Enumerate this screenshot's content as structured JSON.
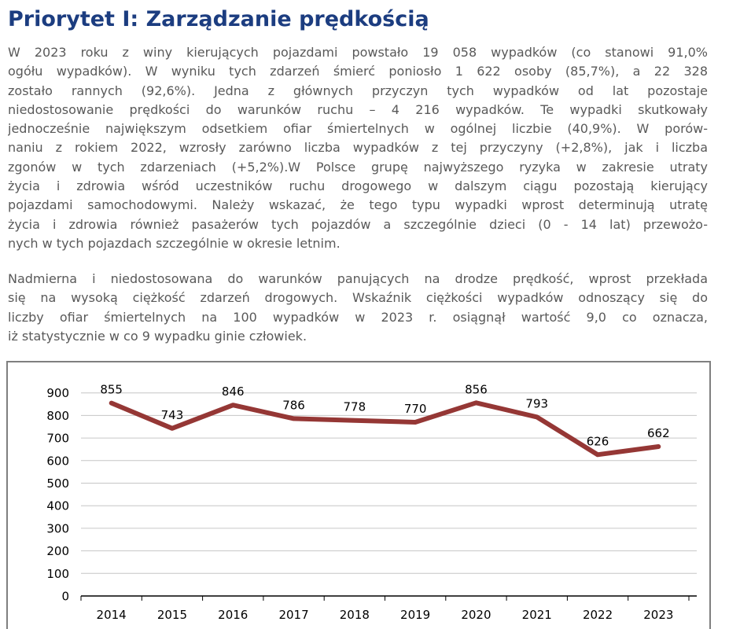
{
  "page": {
    "title": "Priorytet I: Zarządzanie prędkością"
  },
  "paragraphs": [
    {
      "lines": [
        "W 2023 roku z winy kierujących pojazdami powstało 19 058 wypadków (co stanowi 91,0%",
        "ogółu wypadków). W wyniku tych zdarzeń śmierć poniosło 1 622 osoby (85,7%), a 22 328",
        "zostało rannych (92,6%). Jedna z głównych przyczyn tych wypadków od lat pozostaje",
        "niedostosowanie prędkości do warunków ruchu – 4 216 wypadków. Te wypadki skutkowały",
        "jednocześnie największym odsetkiem ofiar śmiertelnych w ogólnej liczbie (40,9%). W porów-",
        "naniu z rokiem 2022, wzrosły zarówno liczba wypadków z tej przyczyny (+2,8%), jak i liczba",
        "zgonów w tych zdarzeniach (+5,2%).W Polsce grupę najwyższego ryzyka w zakresie utraty",
        "życia i zdrowia wśród uczestników ruchu drogowego w dalszym ciągu pozostają kierujący",
        "pojazdami samochodowymi. Należy wskazać, że tego typu wypadki wprost determinują utratę",
        "życia i zdrowia również pasażerów tych pojazdów a szczególnie dzieci (0 - 14 lat) przewożo-",
        "nych w tych pojazdach szczególnie w okresie letnim."
      ]
    },
    {
      "lines": [
        "Nadmierna i niedostosowana do warunków panujących na drodze prędkość, wprost przekłada",
        "się na wysoką ciężkość zdarzeń drogowych. Wskaźnik ciężkości wypadków odnoszący się do",
        "liczby ofiar śmiertelnych na 100 wypadków w 2023 r. osiągnął wartość 9,0 co oznacza,",
        "iż statystycznie w co 9 wypadku ginie człowiek."
      ]
    }
  ],
  "chart_data": {
    "type": "line",
    "categories": [
      "2014",
      "2015",
      "2016",
      "2017",
      "2018",
      "2019",
      "2020",
      "2021",
      "2022",
      "2023"
    ],
    "values": [
      855,
      743,
      846,
      786,
      778,
      770,
      856,
      793,
      626,
      662
    ],
    "data_labels": [
      "855",
      "743",
      "846",
      "786",
      "778",
      "770",
      "856",
      "793",
      "626",
      "662"
    ],
    "title": "",
    "xlabel": "",
    "ylabel": "",
    "ylim": [
      0,
      900
    ],
    "ytick_step": 100,
    "ytick_labels": [
      "0",
      "100",
      "200",
      "300",
      "400",
      "500",
      "600",
      "700",
      "800",
      "900"
    ],
    "grid": true,
    "legend": false,
    "line_color": "#953735"
  },
  "colors": {
    "title": "#1c3d80",
    "body_text": "#595959",
    "chart_border": "#7f7f7f",
    "gridline": "#c6c6c6",
    "axis": "#000000",
    "label_text": "#000000",
    "accent_line": "#953735"
  }
}
